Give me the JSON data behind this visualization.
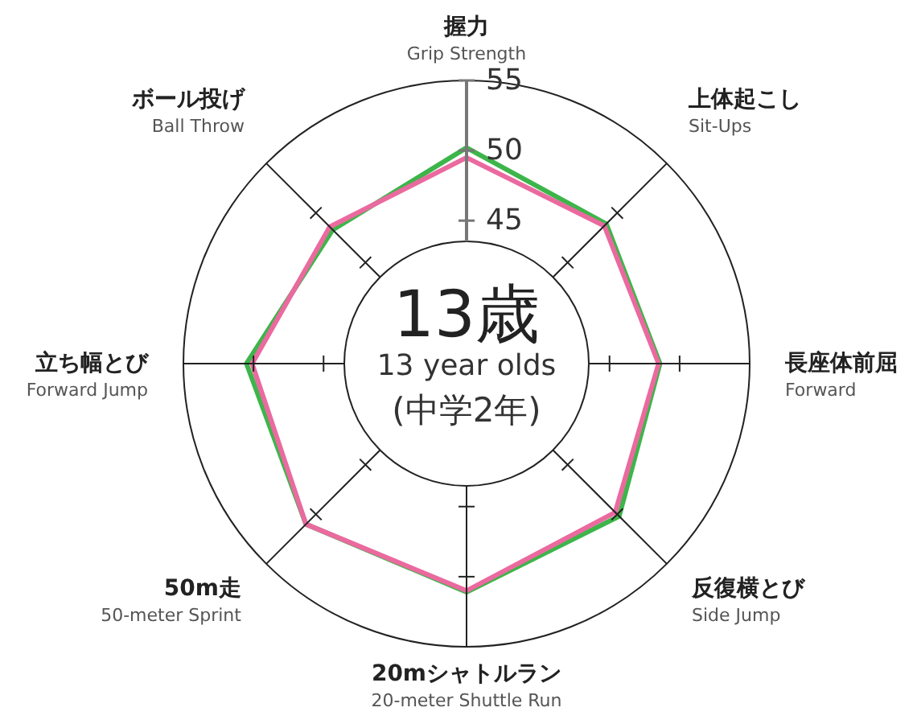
{
  "chart_data": {
    "type": "radar",
    "categories": [
      "握力\nGrip Strength",
      "上体起こし\nSit-Ups",
      "長座体前屈\nForward",
      "反復横とび\nSide Jump",
      "20mシャトルラン\n20-meter Shuttle Run",
      "50m走\n50-meter Sprint",
      "立ち幅とび\nForward Jump",
      "ボール投げ\nBall Throw"
    ],
    "series": [
      {
        "color": "#3db54a",
        "values": [
          50.2,
          48.9,
          48.6,
          50.2,
          51.1,
          51.0,
          50.5,
          48.3
        ]
      },
      {
        "color": "#ea6a9f",
        "values": [
          49.5,
          48.7,
          48.5,
          49.8,
          51.0,
          51.0,
          50.1,
          48.6
        ]
      }
    ],
    "ylim": [
      34.8,
      55
    ],
    "yticks": [
      45,
      50,
      55
    ],
    "grid": true,
    "marker": "none",
    "annotations": [
      "13歳",
      "13 year olds",
      "(中学2年)"
    ]
  }
}
